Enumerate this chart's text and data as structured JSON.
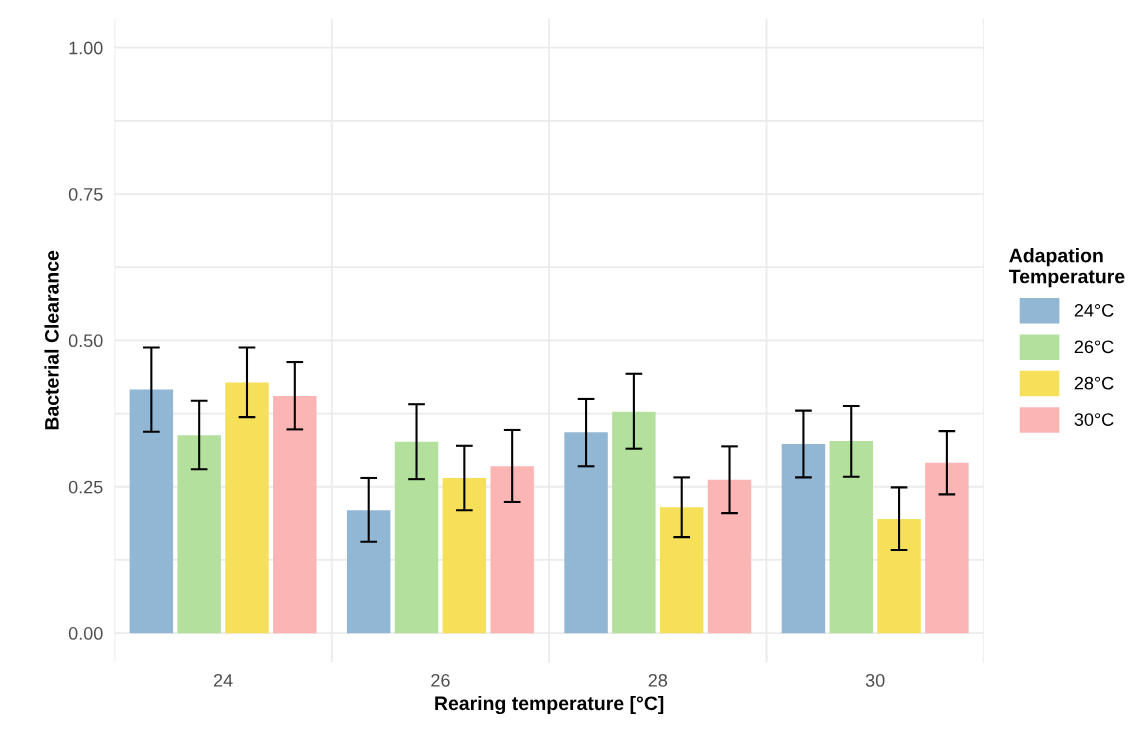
{
  "chart_data": {
    "type": "bar",
    "xlabel": "Rearing temperature [°C]",
    "ylabel": "Bacterial Clearance",
    "legend_title": "Adapation\nTemperature",
    "categories": [
      "24",
      "26",
      "28",
      "30"
    ],
    "series": [
      {
        "name": "24°C",
        "color": "#92b7d4",
        "values": [
          0.416,
          0.21,
          0.343,
          0.323
        ],
        "errors": [
          [
            0.344,
            0.488
          ],
          [
            0.156,
            0.265
          ],
          [
            0.285,
            0.4
          ],
          [
            0.266,
            0.38
          ]
        ]
      },
      {
        "name": "26°C",
        "color": "#b3e09d",
        "values": [
          0.338,
          0.327,
          0.378,
          0.328
        ],
        "errors": [
          [
            0.28,
            0.397
          ],
          [
            0.263,
            0.391
          ],
          [
            0.315,
            0.443
          ],
          [
            0.267,
            0.388
          ]
        ]
      },
      {
        "name": "28°C",
        "color": "#f6e05a",
        "values": [
          0.428,
          0.265,
          0.215,
          0.195
        ],
        "errors": [
          [
            0.369,
            0.488
          ],
          [
            0.21,
            0.32
          ],
          [
            0.164,
            0.266
          ],
          [
            0.142,
            0.249
          ]
        ]
      },
      {
        "name": "30°C",
        "color": "#fbb5b5",
        "values": [
          0.405,
          0.285,
          0.262,
          0.291
        ],
        "errors": [
          [
            0.348,
            0.463
          ],
          [
            0.224,
            0.347
          ],
          [
            0.205,
            0.319
          ],
          [
            0.237,
            0.345
          ]
        ]
      }
    ],
    "ylim": [
      -0.05,
      1.05
    ],
    "yticks": [
      {
        "value": 0,
        "label": "0.00"
      },
      {
        "value": 0.25,
        "label": "0.25"
      },
      {
        "value": 0.5,
        "label": "0.50"
      },
      {
        "value": 0.75,
        "label": "0.75"
      },
      {
        "value": 1,
        "label": "1.00"
      }
    ],
    "grid": true,
    "legend": "right"
  }
}
